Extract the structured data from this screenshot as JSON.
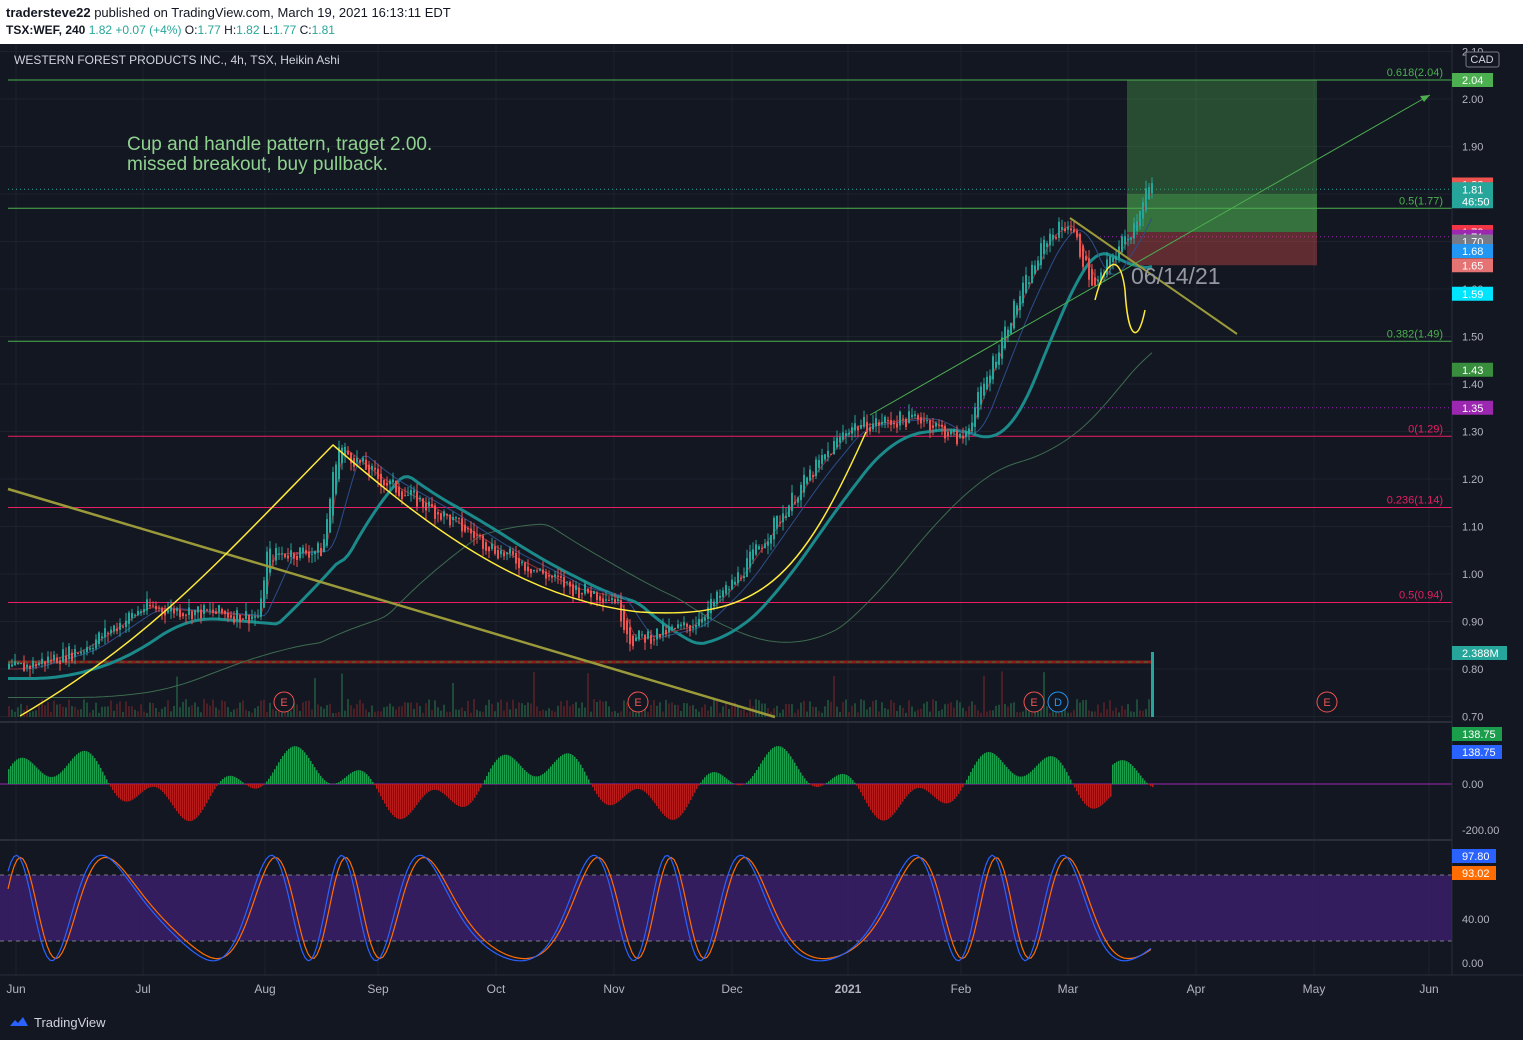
{
  "header": {
    "author": "tradersteve22",
    "published": "published on TradingView.com, March 19, 2021 16:13:11 EDT",
    "symbol": "TSX:WEF, 240",
    "price": "1.82",
    "change": "+0.07 (+4%)",
    "o_label": "O:",
    "o_value": "1.77",
    "h_label": "H:",
    "h_value": "1.82",
    "l_label": "L:",
    "l_value": "1.77",
    "c_label": "C:",
    "c_value": "1.81"
  },
  "legend": {
    "title": "WESTERN FOREST PRODUCTS INC., 4h, TSX, Heikin Ashi",
    "currency": "CAD"
  },
  "annotation": {
    "line1": "Cup and handle pattern, traget 2.00.",
    "line2": "missed breakout, buy pullback.",
    "date": "06/14/21"
  },
  "colors": {
    "background": "#131722",
    "up": "#26a69a",
    "down": "#ef5350",
    "fib_green": "#4caf50",
    "fib_pink": "#e91e63",
    "cup": "#ffeb3b",
    "trend": "#9a9a3a",
    "ema_teal": "#1b8a8a",
    "macd_up": "#1b9e4b",
    "macd_down": "#b71c1c",
    "stoch_fill": "#3c1f6e",
    "stoch_k": "#2962ff",
    "stoch_d": "#ff6d00"
  },
  "chart_data": {
    "type": "candlestick",
    "price_axis": {
      "ticks": [
        "2.10",
        "2.00",
        "1.90",
        "1.80",
        "1.70",
        "1.60",
        "1.50",
        "1.40",
        "1.30",
        "1.20",
        "1.10",
        "1.00",
        "0.90",
        "0.80",
        "0.70"
      ],
      "range": [
        0.7,
        2.1
      ]
    },
    "time_axis": [
      "Jun",
      "Jul",
      "Aug",
      "Sep",
      "Oct",
      "Nov",
      "Dec",
      "2021",
      "Feb",
      "Mar",
      "Apr",
      "May",
      "Jun"
    ],
    "price_path": [
      [
        "Jun",
        0.8
      ],
      [
        "Jun mid",
        0.84
      ],
      [
        "Jul",
        0.93
      ],
      [
        "Jul end",
        0.91
      ],
      [
        "Aug",
        1.04
      ],
      [
        "Aug mid",
        1.05
      ],
      [
        "Aug 20",
        1.27
      ],
      [
        "Sep",
        1.2
      ],
      [
        "Sep mid",
        1.13
      ],
      [
        "Oct",
        1.05
      ],
      [
        "Oct 20",
        0.97
      ],
      [
        "Nov",
        0.95
      ],
      [
        "Nov 5",
        0.86
      ],
      [
        "Nov 20",
        0.89
      ],
      [
        "Dec",
        0.98
      ],
      [
        "Dec 20",
        1.2
      ],
      [
        "2021",
        1.31
      ],
      [
        "Jan 20",
        1.33
      ],
      [
        "Feb",
        1.28
      ],
      [
        "Feb 15",
        1.55
      ],
      [
        "Feb 25",
        1.71
      ],
      [
        "Mar",
        1.74
      ],
      [
        "Mar 7",
        1.6
      ],
      [
        "Mar 12",
        1.68
      ],
      [
        "Mar 16",
        1.73
      ],
      [
        "Mar 19",
        1.81
      ]
    ],
    "fib_levels": [
      {
        "label": "0.618(2.04)",
        "value": 2.04
      },
      {
        "label": "0.5(1.77)",
        "value": 1.77
      },
      {
        "label": "0.382(1.49)",
        "value": 1.49
      },
      {
        "label": "0(1.29)",
        "value": 1.29
      },
      {
        "label": "0.236(1.14)",
        "value": 1.14
      },
      {
        "label": "0.5(0.94)",
        "value": 0.94
      }
    ],
    "price_labels": [
      {
        "text": "2.04",
        "value": 2.04,
        "color": "#4caf50"
      },
      {
        "text": "1.82",
        "value": 1.82,
        "color": "#ef5350"
      },
      {
        "text": "1.81",
        "value": 1.81,
        "color": "#26a69a",
        "sub": "46:50"
      },
      {
        "text": "1.72",
        "value": 1.72,
        "color": "#f23645"
      },
      {
        "text": "1.71",
        "value": 1.71,
        "color": "#9c27b0"
      },
      {
        "text": "1.70",
        "value": 1.7,
        "color": "#787b86"
      },
      {
        "text": "1.68",
        "value": 1.68,
        "color": "#2196f3"
      },
      {
        "text": "1.65",
        "value": 1.65,
        "color": "#e57373"
      },
      {
        "text": "1.59",
        "value": 1.59,
        "color": "#00e5ff"
      },
      {
        "text": "1.43",
        "value": 1.43,
        "color": "#388e3c"
      },
      {
        "text": "1.35",
        "value": 1.35,
        "color": "#9c27b0"
      }
    ],
    "volume_label": "2.388M",
    "earnings_markers": [
      {
        "text": "E",
        "at": "Aug 1"
      },
      {
        "text": "E",
        "at": "Nov 1"
      },
      {
        "text": "E",
        "at": "Mar 1"
      },
      {
        "text": "D",
        "at": "Mar 1"
      },
      {
        "text": "E",
        "at": "May 1"
      }
    ],
    "macd": {
      "ticks": [
        "0.00",
        "-200.00"
      ],
      "labels": [
        {
          "text": "138.75",
          "color": "#1b9e4b"
        },
        {
          "text": "138.75",
          "color": "#2962ff"
        }
      ]
    },
    "stochastic": {
      "ticks": [
        "40.00",
        "0.00"
      ],
      "labels": [
        {
          "text": "97.80",
          "color": "#2962ff"
        },
        {
          "text": "93.02",
          "color": "#ff6d00"
        }
      ]
    }
  },
  "footer": {
    "brand": "TradingView"
  }
}
